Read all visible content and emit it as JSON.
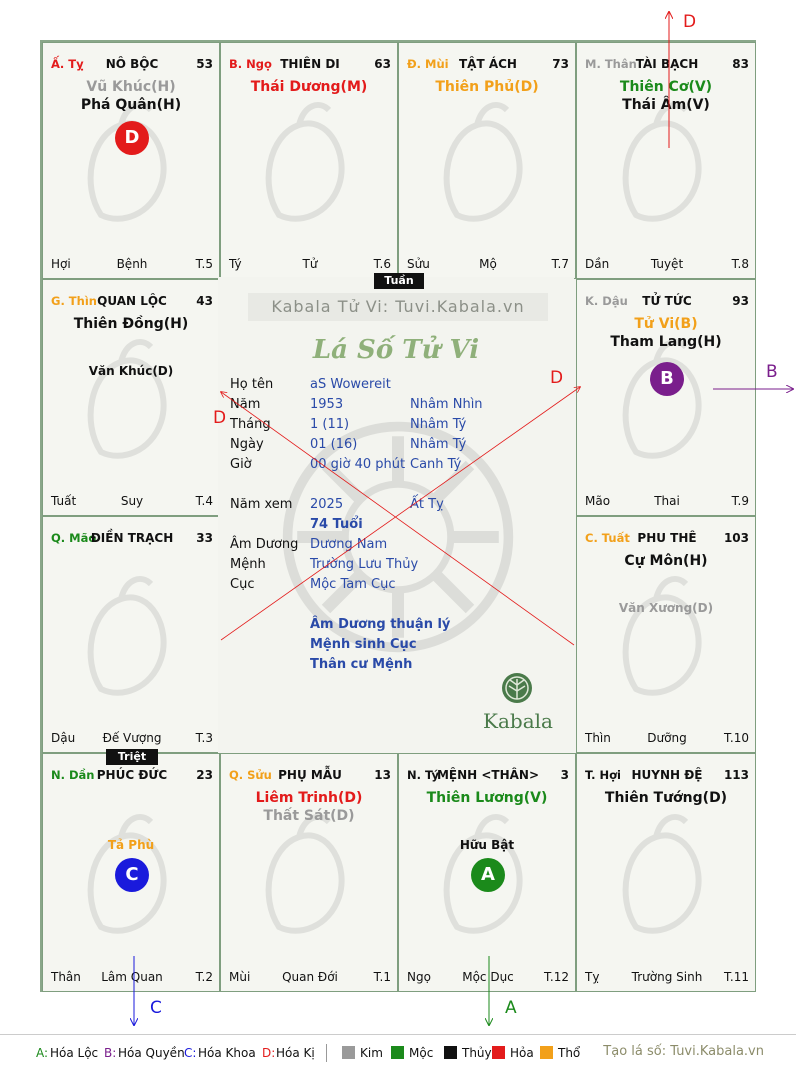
{
  "board": {
    "palaces": [
      {
        "key": "ty_snake",
        "can_chi": "Ấ. Tỵ",
        "can_color": "#e31b1b",
        "name": "NÔ BỘC",
        "number": "53",
        "stars": [
          {
            "text": "Vũ Khúc(H)",
            "color": "#9a9a9a"
          },
          {
            "text": "Phá Quân(H)",
            "color": "#111111"
          }
        ],
        "badge": {
          "text": "D",
          "color": "#e31b1b"
        },
        "footer": {
          "left": "Hợi",
          "center": "Bệnh",
          "right": "T.5"
        }
      },
      {
        "key": "ngo_horse",
        "can_chi": "B. Ngọ",
        "can_color": "#e31b1b",
        "name": "THIÊN DI",
        "number": "63",
        "stars": [
          {
            "text": "Thái Dương(M)",
            "color": "#e31b1b"
          }
        ],
        "footer": {
          "left": "Tý",
          "center": "Tử",
          "right": "T.6"
        }
      },
      {
        "key": "mui_goat",
        "can_chi": "Đ. Mùi",
        "can_color": "#f2a01a",
        "name": "TẬT ÁCH",
        "number": "73",
        "stars": [
          {
            "text": "Thiên Phủ(D)",
            "color": "#f2a01a"
          }
        ],
        "footer": {
          "left": "Sửu",
          "center": "Mộ",
          "right": "T.7"
        }
      },
      {
        "key": "than_monkey",
        "can_chi": "M. Thân",
        "can_color": "#9a9a9a",
        "name": "TÀI BẠCH",
        "number": "83",
        "stars": [
          {
            "text": "Thiên Cơ(V)",
            "color": "#1b8a1b"
          },
          {
            "text": "Thái Âm(V)",
            "color": "#111111"
          }
        ],
        "footer": {
          "left": "Dần",
          "center": "Tuyệt",
          "right": "T.8"
        }
      },
      {
        "key": "thin_dragon",
        "can_chi": "G. Thìn",
        "can_color": "#f2a01a",
        "name": "QUAN LỘC",
        "number": "43",
        "stars": [
          {
            "text": "Thiên Đồng(H)",
            "color": "#111111"
          }
        ],
        "minor": [
          {
            "text": "Văn Khúc(D)",
            "color": "#111111"
          }
        ],
        "footer": {
          "left": "Tuất",
          "center": "Suy",
          "right": "T.4"
        }
      },
      {
        "key": "dau_rooster",
        "can_chi": "K. Dậu",
        "can_color": "#9a9a9a",
        "name": "TỬ TỨC",
        "number": "93",
        "stars": [
          {
            "text": "Tử Vi(B)",
            "color": "#f2a01a"
          },
          {
            "text": "Tham Lang(H)",
            "color": "#111111"
          }
        ],
        "badge": {
          "text": "B",
          "color": "#7a1e8c"
        },
        "footer": {
          "left": "Mão",
          "center": "Thai",
          "right": "T.9"
        }
      },
      {
        "key": "mao_cat",
        "can_chi": "Q. Mão",
        "can_color": "#1b8a1b",
        "name": "ĐIỀN TRẠCH",
        "number": "33",
        "stars": [],
        "footer": {
          "left": "Dậu",
          "center": "Đế Vượng",
          "right": "T.3"
        }
      },
      {
        "key": "tuat_dog",
        "can_chi": "C. Tuất",
        "can_color": "#f2a01a",
        "name": "PHU THÊ",
        "number": "103",
        "stars": [
          {
            "text": "Cự Môn(H)",
            "color": "#111111"
          }
        ],
        "minor": [
          {
            "text": "Văn Xương(D)",
            "color": "#9a9a9a"
          }
        ],
        "footer": {
          "left": "Thìn",
          "center": "Dưỡng",
          "right": "T.10"
        }
      },
      {
        "key": "dan_tiger",
        "can_chi": "N. Dần",
        "can_color": "#1b8a1b",
        "name": "PHÚC ĐỨC",
        "number": "23",
        "stars": [],
        "minor": [
          {
            "text": "Tả Phù",
            "color": "#f2a01a"
          }
        ],
        "badge": {
          "text": "C",
          "color": "#1a1adc"
        },
        "footer": {
          "left": "Thân",
          "center": "Lâm Quan",
          "right": "T.2"
        }
      },
      {
        "key": "suu_ox",
        "can_chi": "Q. Sửu",
        "can_color": "#f2a01a",
        "name": "PHỤ MẪU",
        "number": "13",
        "stars": [
          {
            "text": "Liêm Trinh(D)",
            "color": "#e31b1b"
          },
          {
            "text": "Thất Sát(D)",
            "color": "#9a9a9a"
          }
        ],
        "footer": {
          "left": "Mùi",
          "center": "Quan Đới",
          "right": "T.1"
        }
      },
      {
        "key": "ty_rat",
        "can_chi": "N. Tý",
        "can_color": "#111111",
        "name": "MỆNH <THÂN>",
        "number": "3",
        "stars": [
          {
            "text": "Thiên Lương(V)",
            "color": "#1b8a1b"
          }
        ],
        "minor": [
          {
            "text": "Hữu Bật",
            "color": "#111111"
          }
        ],
        "badge": {
          "text": "A",
          "color": "#1b8a1b"
        },
        "footer": {
          "left": "Ngọ",
          "center": "Mộc Dục",
          "right": "T.12"
        }
      },
      {
        "key": "hoi_pig",
        "can_chi": "T. Hợi",
        "can_color": "#111111",
        "name": "HUYNH ĐỆ",
        "number": "113",
        "stars": [
          {
            "text": "Thiên Tướng(D)",
            "color": "#111111"
          }
        ],
        "footer": {
          "left": "Tỵ",
          "center": "Trường Sinh",
          "right": "T.11"
        }
      }
    ],
    "tags": {
      "tuan": "Tuần",
      "triet": "Triệt"
    }
  },
  "center": {
    "watermark": "Kabala Tử Vi: Tuvi.Kabala.vn",
    "title": "Lá Số Tử Vi",
    "rows": [
      {
        "label": "Họ tên",
        "value": "aS Wowereit",
        "extra": ""
      },
      {
        "label": "Năm",
        "value": "1953",
        "extra": "Nhâm Nhìn"
      },
      {
        "label": "Tháng",
        "value": "1  (11)",
        "extra": "Nhâm Tý"
      },
      {
        "label": "Ngày",
        "value": "01  (16)",
        "extra": "Nhâm Tý"
      },
      {
        "label": "Giờ",
        "value": "00 giờ 40 phút",
        "extra": "Canh Tý"
      }
    ],
    "year_view": {
      "label": "Năm xem",
      "value": "2025",
      "extra": "Ất Tỵ",
      "age": "74 Tuổi"
    },
    "rows2": [
      {
        "label": "Âm Dương",
        "value": "Dương Nam"
      },
      {
        "label": "Mệnh",
        "value": "Trường Lưu Thủy"
      },
      {
        "label": "Cục",
        "value": "Mộc Tam Cục"
      }
    ],
    "notes": [
      "Âm Dương thuận lý",
      "Mệnh sinh Cục",
      "Thân cư Mệnh"
    ],
    "logo_text": "Kabala"
  },
  "arrows": {
    "top": {
      "label": "D",
      "color": "#e31b1b"
    },
    "right": {
      "label": "B",
      "color": "#7a1e8c"
    },
    "bottom_left": {
      "label": "C",
      "color": "#1a1adc"
    },
    "bottom_right": {
      "label": "A",
      "color": "#1b8a1b"
    },
    "cross_left": {
      "label": "D",
      "color": "#e31b1b"
    },
    "cross_right": {
      "label": "D",
      "color": "#e31b1b"
    }
  },
  "legend": {
    "hoa": [
      {
        "letter": "A:",
        "text": "Hóa Lộc",
        "color": "#1b8a1b"
      },
      {
        "letter": "B:",
        "text": "Hóa Quyền",
        "color": "#7a1e8c"
      },
      {
        "letter": "C:",
        "text": "Hóa Khoa",
        "color": "#1a1adc"
      },
      {
        "letter": "D:",
        "text": "Hóa Kị",
        "color": "#e31b1b"
      }
    ],
    "elements": [
      {
        "text": "Kim",
        "color": "#9a9a9a"
      },
      {
        "text": "Mộc",
        "color": "#1b8a1b"
      },
      {
        "text": "Thủy",
        "color": "#111111"
      },
      {
        "text": "Hỏa",
        "color": "#e31b1b"
      },
      {
        "text": "Thổ",
        "color": "#f2a01a"
      }
    ],
    "credit": "Tạo lá số: Tuvi.Kabala.vn"
  }
}
